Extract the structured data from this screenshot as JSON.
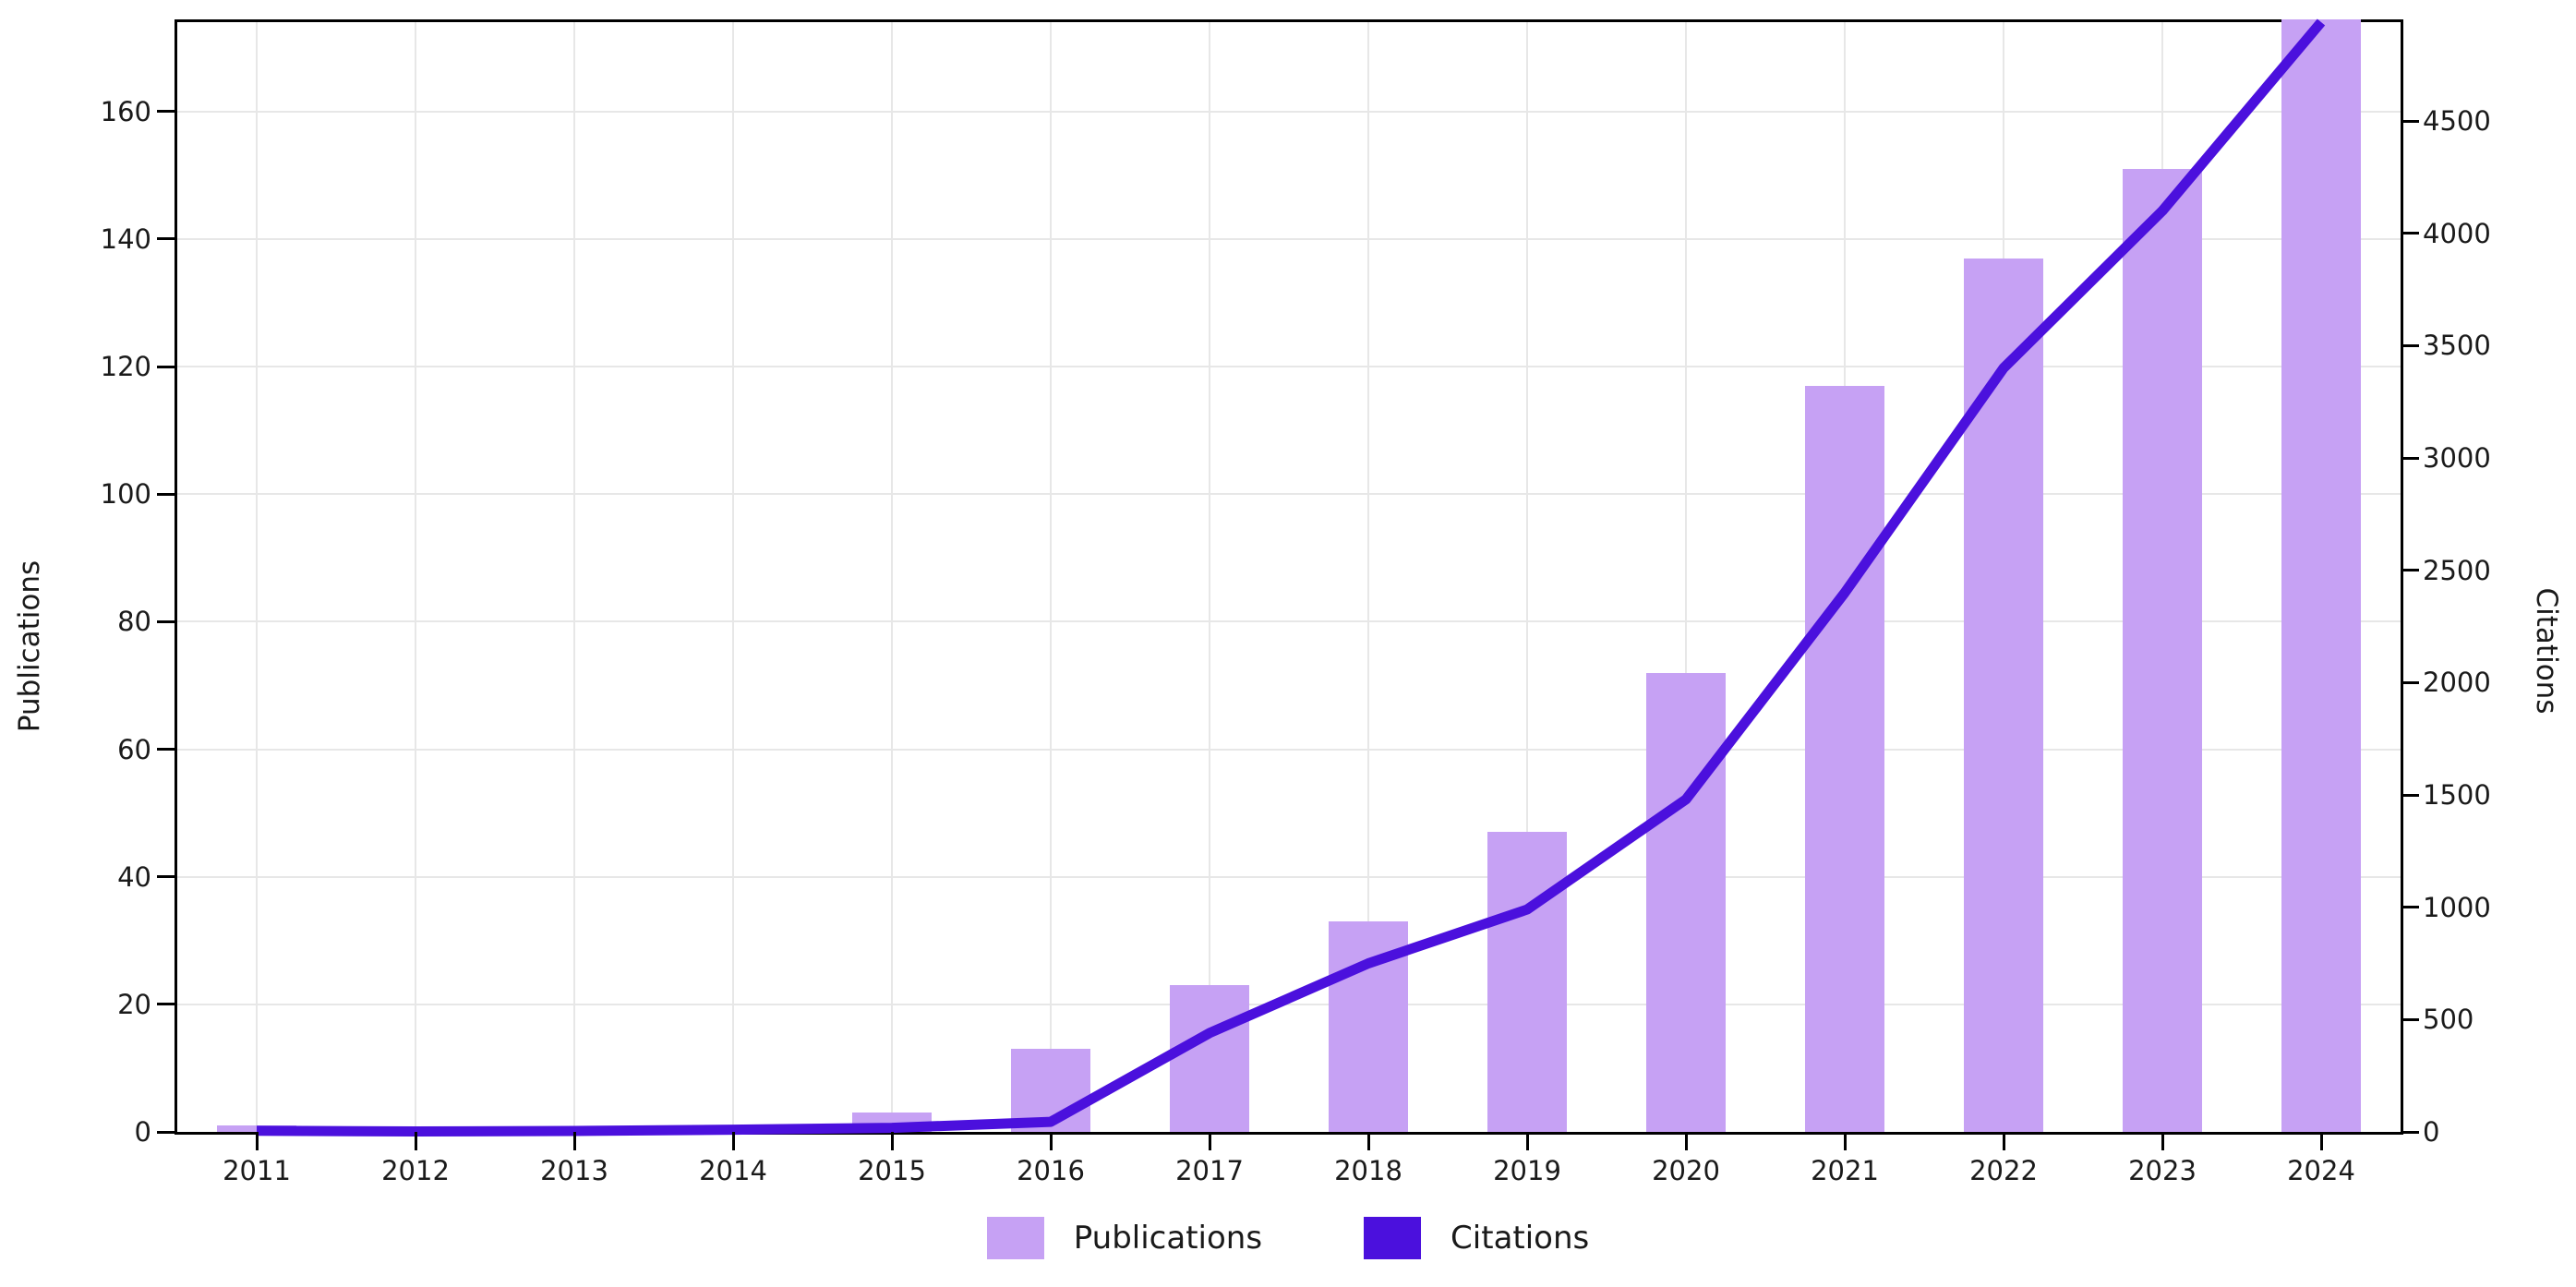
{
  "chart_data": {
    "type": "bar",
    "subtype": "bar-line-combo-dual-axis",
    "title": "",
    "categories": [
      "2011",
      "2012",
      "2013",
      "2014",
      "2015",
      "2016",
      "2017",
      "2018",
      "2019",
      "2020",
      "2021",
      "2022",
      "2023",
      "2024"
    ],
    "series": [
      {
        "name": "Publications",
        "type": "bar",
        "axis": "left",
        "values": [
          1,
          0,
          0,
          1,
          3,
          13,
          23,
          33,
          47,
          72,
          117,
          137,
          151,
          174
        ]
      },
      {
        "name": "Citations",
        "type": "line",
        "axis": "right",
        "values": [
          5,
          2,
          4,
          10,
          18,
          45,
          440,
          750,
          990,
          1480,
          2400,
          3400,
          4100,
          4940
        ]
      }
    ],
    "left_axis": {
      "label": "Publications",
      "ticks": [
        0,
        20,
        40,
        60,
        80,
        100,
        120,
        140,
        160
      ],
      "min": 0,
      "max": 174
    },
    "right_axis": {
      "label": "Citations",
      "ticks": [
        0,
        500,
        1000,
        1500,
        2000,
        2500,
        3000,
        3500,
        4000,
        4500
      ],
      "min": 0,
      "max": 4940
    },
    "grid": true,
    "legend_position": "bottom-center",
    "colors": {
      "bar_fill": "#c6a1f4",
      "line": "#4b10dd",
      "grid": "#e7e7e7",
      "axis": "#000000",
      "text": "#1a1a1a",
      "background": "#ffffff"
    }
  }
}
